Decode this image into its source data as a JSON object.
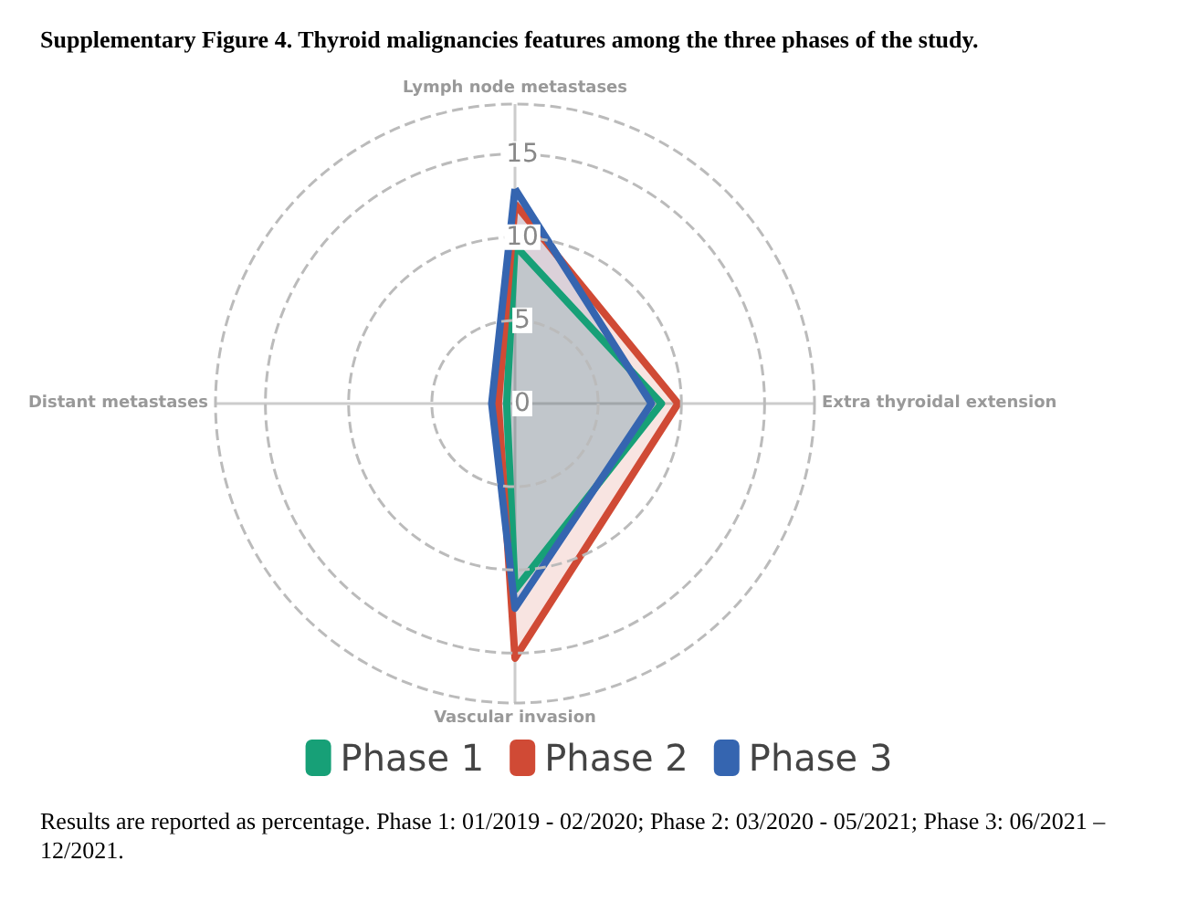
{
  "chart_data": {
    "type": "radar",
    "title": "Supplementary Figure 4. Thyroid malignancies features among the three phases of the study.",
    "categories": [
      "Lymph node metastases",
      "Extra thyroidal extension",
      "Vascular invasion",
      "Distant metastases"
    ],
    "series": [
      {
        "name": "Phase 1",
        "color": "#17a077",
        "values": [
          9.5,
          8.8,
          11.2,
          0.5
        ]
      },
      {
        "name": "Phase 2",
        "color": "#d04a35",
        "values": [
          12.0,
          9.8,
          15.3,
          1.0
        ]
      },
      {
        "name": "Phase 3",
        "color": "#3565b0",
        "values": [
          12.9,
          8.2,
          12.3,
          1.4
        ]
      }
    ],
    "ylim": [
      0,
      18
    ],
    "yticks": [
      0,
      5,
      10,
      15
    ],
    "grid": true,
    "legend": "bottom",
    "marker": "none",
    "annotations": [
      "Results are reported as percentage. Phase 1: 01/2019 - 02/2020; Phase 2: 03/2020 - 05/2021; Phase 3: 06/2021 – 12/2021."
    ]
  }
}
